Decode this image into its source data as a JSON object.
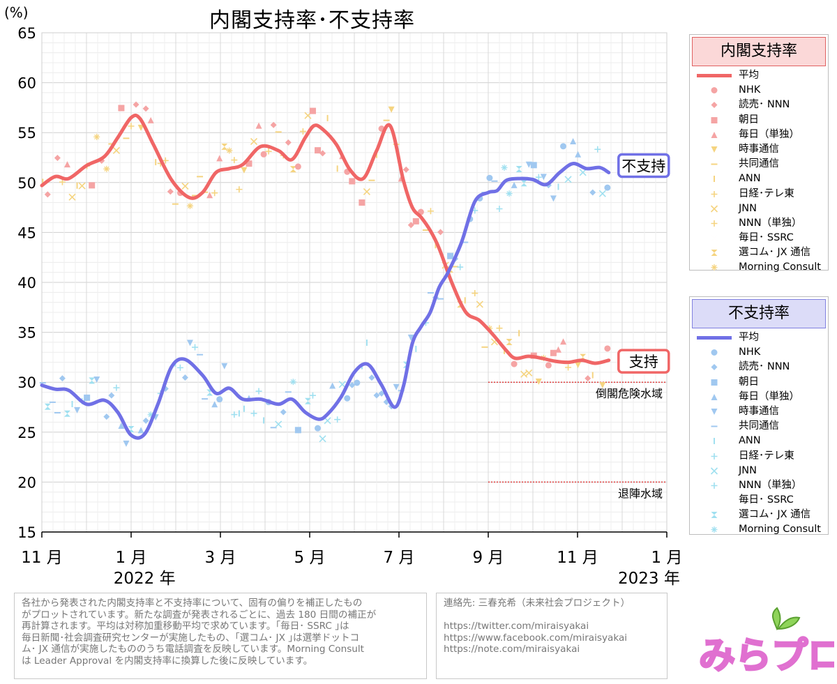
{
  "chart_data": {
    "type": "line",
    "title": "内閣支持率･不支持率",
    "y_unit": "(%)",
    "ylim": [
      15,
      65
    ],
    "y_ticks": [
      15,
      20,
      25,
      30,
      35,
      40,
      45,
      50,
      55,
      60,
      65
    ],
    "x_range_months": [
      0,
      14
    ],
    "x_ticks": [
      {
        "m": 0,
        "label": "11 月"
      },
      {
        "m": 2,
        "label": "1 月"
      },
      {
        "m": 4,
        "label": "3 月"
      },
      {
        "m": 6,
        "label": "5 月"
      },
      {
        "m": 8,
        "label": "7 月"
      },
      {
        "m": 10,
        "label": "9 月"
      },
      {
        "m": 12,
        "label": "11 月"
      },
      {
        "m": 14,
        "label": "1 月"
      }
    ],
    "year_labels": [
      {
        "m": 2.3,
        "label": "2022 年"
      },
      {
        "m": 13.6,
        "label": "2023 年"
      }
    ],
    "series": [
      {
        "name": "内閣支持率 平均",
        "color": "#f06666",
        "x": [
          0,
          0.3,
          0.6,
          1.0,
          1.4,
          1.7,
          2.0,
          2.2,
          2.5,
          2.9,
          3.3,
          3.6,
          3.9,
          4.2,
          4.5,
          4.9,
          5.3,
          5.6,
          5.9,
          6.1,
          6.3,
          6.6,
          6.9,
          7.2,
          7.5,
          7.8,
          8.1,
          8.3,
          8.5,
          8.7,
          8.9,
          9.2,
          9.5,
          9.8,
          10.1,
          10.4,
          10.6,
          10.9,
          11.2,
          11.5,
          11.8,
          12.1,
          12.4,
          12.7
        ],
        "values": [
          49.7,
          50.6,
          50.4,
          51.7,
          52.6,
          54.5,
          56.5,
          56.4,
          53.8,
          50.3,
          48.5,
          49.0,
          51.0,
          51.4,
          51.8,
          53.6,
          53.2,
          52.3,
          54.5,
          55.7,
          55.3,
          53.8,
          51.3,
          50.4,
          53.2,
          55.7,
          50.2,
          47.5,
          46.5,
          45.2,
          43.4,
          39.8,
          37.0,
          36.2,
          34.8,
          33.2,
          32.4,
          32.6,
          32.4,
          32.1,
          32.0,
          32.2,
          31.9,
          32.2
        ]
      },
      {
        "name": "不支持率 平均",
        "color": "#7070e6",
        "x": [
          0,
          0.3,
          0.6,
          1.0,
          1.4,
          1.7,
          2.0,
          2.3,
          2.6,
          2.9,
          3.2,
          3.6,
          3.9,
          4.2,
          4.5,
          4.9,
          5.3,
          5.6,
          5.9,
          6.2,
          6.4,
          6.7,
          7.0,
          7.3,
          7.6,
          7.9,
          8.1,
          8.3,
          8.5,
          8.7,
          8.9,
          9.1,
          9.4,
          9.7,
          10.0,
          10.2,
          10.4,
          10.7,
          11.0,
          11.3,
          11.6,
          11.9,
          12.2,
          12.5,
          12.7
        ],
        "values": [
          29.7,
          29.3,
          29.2,
          27.8,
          28.2,
          27.0,
          24.7,
          24.8,
          27.8,
          31.5,
          32.3,
          30.7,
          28.9,
          29.4,
          28.3,
          28.3,
          27.8,
          28.3,
          27.0,
          26.3,
          26.8,
          28.5,
          31.0,
          31.8,
          29.8,
          27.5,
          29.6,
          33.9,
          35.6,
          37.0,
          39.5,
          41.0,
          44.0,
          48.1,
          49.0,
          49.2,
          50.2,
          50.4,
          50.3,
          49.8,
          51.0,
          51.9,
          51.4,
          51.5,
          51.0
        ]
      }
    ],
    "reference_lines": [
      {
        "y": 30,
        "from_m": 10,
        "label": "倒閣危険水域"
      },
      {
        "y": 20,
        "from_m": 10,
        "label": "退陣水域"
      }
    ],
    "end_labels": {
      "disapprove": "不支持",
      "approve": "支持"
    },
    "legends": [
      {
        "title": "内閣支持率",
        "avg_label": "平均",
        "items": [
          "NHK",
          "読売･ NNN",
          "朝日",
          "毎日（単独）",
          "時事通信",
          "共同通信",
          "ANN",
          "日経･テレ東",
          "JNN",
          "NNN（単独）",
          "毎日･ SSRC",
          "選コム･ JX 通信",
          "Morning Consult"
        ],
        "line_color": "#f06666",
        "marker_colors": [
          "#f5a4a4",
          "#f5a4a4",
          "#f5a4a4",
          "#f5a4a4",
          "#f5d480",
          "#f5d480",
          "#f5d480",
          "#f5d480",
          "#f5d480",
          "#f5d480",
          "#f5d480",
          "#f5d480",
          "#f5d480"
        ]
      },
      {
        "title": "不支持率",
        "avg_label": "平均",
        "items": [
          "NHK",
          "読売･ NNN",
          "朝日",
          "毎日（単独）",
          "時事通信",
          "共同通信",
          "ANN",
          "日経･テレ東",
          "JNN",
          "NNN（単独）",
          "毎日･ SSRC",
          "選コム･ JX 通信",
          "Morning Consult"
        ],
        "line_color": "#7070e6",
        "marker_colors": [
          "#a0c8f0",
          "#a0c8f0",
          "#a0c8f0",
          "#a0c8f0",
          "#a0c8f0",
          "#a0c8f0",
          "#a0e0f0",
          "#a0e0f0",
          "#a0e0f0",
          "#a0e0f0",
          "#a0e0f0",
          "#a0e0f0",
          "#a0e0f0"
        ]
      }
    ]
  },
  "notes": {
    "left": [
      "各社から発表された内閣支持率と不支持率について、固有の偏りを補正したもの",
      "がプロットされています。新たな調査が発表されるごとに、過去 180 日間の補正が",
      "再計算されます。平均は対称加重移動平均で求めています。｢毎日･ SSRC ｣は",
      "毎日新聞･社会調査研究センターが実施したもの、｢選コム･ JX ｣は選挙ドットコ",
      "ム･ JX 通信が実施したもののうち電話調査を反映しています。Morning Consult",
      "は Leader Approval を内閣支持率に換算した後に反映しています。"
    ],
    "right": [
      "連絡先: 三春充希（未来社会プロジェクト）",
      "",
      "https://twitter.com/miraisyakai",
      "https://www.facebook.com/miraisyakai",
      "https://note.com/miraisyakai"
    ]
  },
  "logo": {
    "text": "みらプロ"
  }
}
